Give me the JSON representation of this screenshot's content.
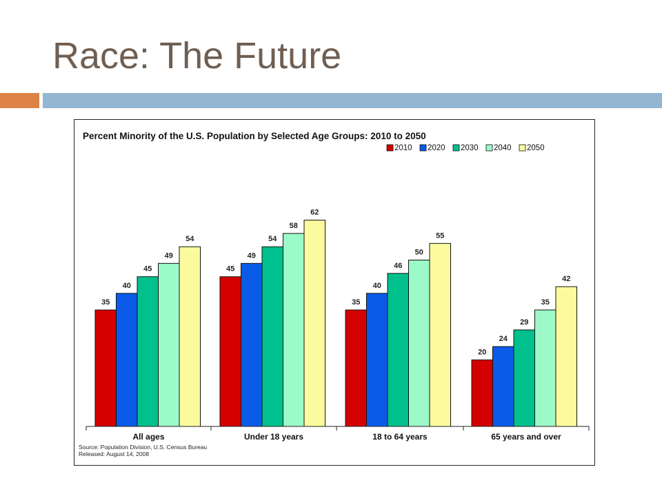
{
  "slide": {
    "title": "Race: The Future"
  },
  "colors": {
    "title": "#6f5f52",
    "accent_orange": "#dd8347",
    "accent_blue": "#94b6d2"
  },
  "chart_data": {
    "type": "bar",
    "title": "Percent Minority of the U.S. Population by Selected Age Groups: 2010 to 2050",
    "categories": [
      "All ages",
      "Under 18 years",
      "18 to 64 years",
      "65 years and over"
    ],
    "series": [
      {
        "name": "2010",
        "color": "#d40000",
        "values": [
          35,
          45,
          35,
          20
        ]
      },
      {
        "name": "2020",
        "color": "#0a5ce8",
        "values": [
          40,
          49,
          40,
          24
        ]
      },
      {
        "name": "2030",
        "color": "#00c08d",
        "values": [
          45,
          54,
          46,
          29
        ]
      },
      {
        "name": "2040",
        "color": "#9cf9c8",
        "values": [
          49,
          58,
          50,
          35
        ]
      },
      {
        "name": "2050",
        "color": "#fbfb9d",
        "values": [
          54,
          62,
          55,
          42
        ]
      }
    ],
    "ylim": [
      0,
      70
    ],
    "legend_position": "top-right",
    "grid": false,
    "source_lines": [
      "Source: Population Division, U.S. Census Bureau",
      "Released: August 14, 2008"
    ]
  }
}
